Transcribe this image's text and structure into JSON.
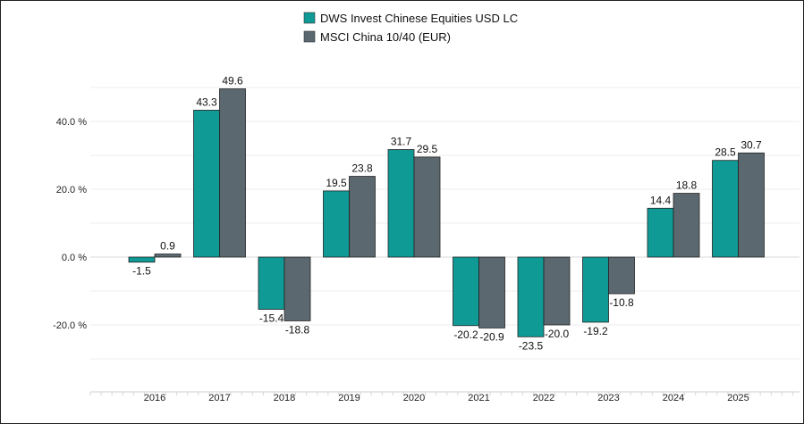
{
  "chart_data": {
    "type": "bar",
    "categories": [
      "2016",
      "2017",
      "2018",
      "2019",
      "2020",
      "2021",
      "2022",
      "2023",
      "2024",
      "2025"
    ],
    "series": [
      {
        "name": "DWS Invest Chinese Equities USD LC",
        "color": "#0f9a96",
        "values": [
          -1.5,
          43.3,
          -15.4,
          19.5,
          31.7,
          -20.2,
          -23.5,
          -19.2,
          14.4,
          28.5
        ],
        "labels": [
          "-1.5",
          "43.3",
          "-15.4",
          "19.5",
          "31.7",
          "-20.2",
          "-23.5",
          "-19.2",
          "14.4",
          "28.5"
        ]
      },
      {
        "name": "MSCI China 10/40 (EUR)",
        "color": "#5b6870",
        "values": [
          0.9,
          49.6,
          -18.8,
          23.8,
          29.5,
          -20.9,
          -20.0,
          -10.8,
          18.8,
          30.7
        ],
        "labels": [
          "0.9",
          "49.6",
          "-18.8",
          "23.8",
          "29.5",
          "-20.9",
          "-20.0",
          "-10.8",
          "18.8",
          "30.7"
        ]
      }
    ],
    "y_ticks": [
      40,
      20,
      0,
      -20
    ],
    "y_tick_labels": [
      "40.0 %",
      "20.0 %",
      "0.0 %",
      "-20.0 %"
    ],
    "ylim": [
      -38,
      61
    ],
    "grid": true,
    "legend_position": "top-center"
  }
}
